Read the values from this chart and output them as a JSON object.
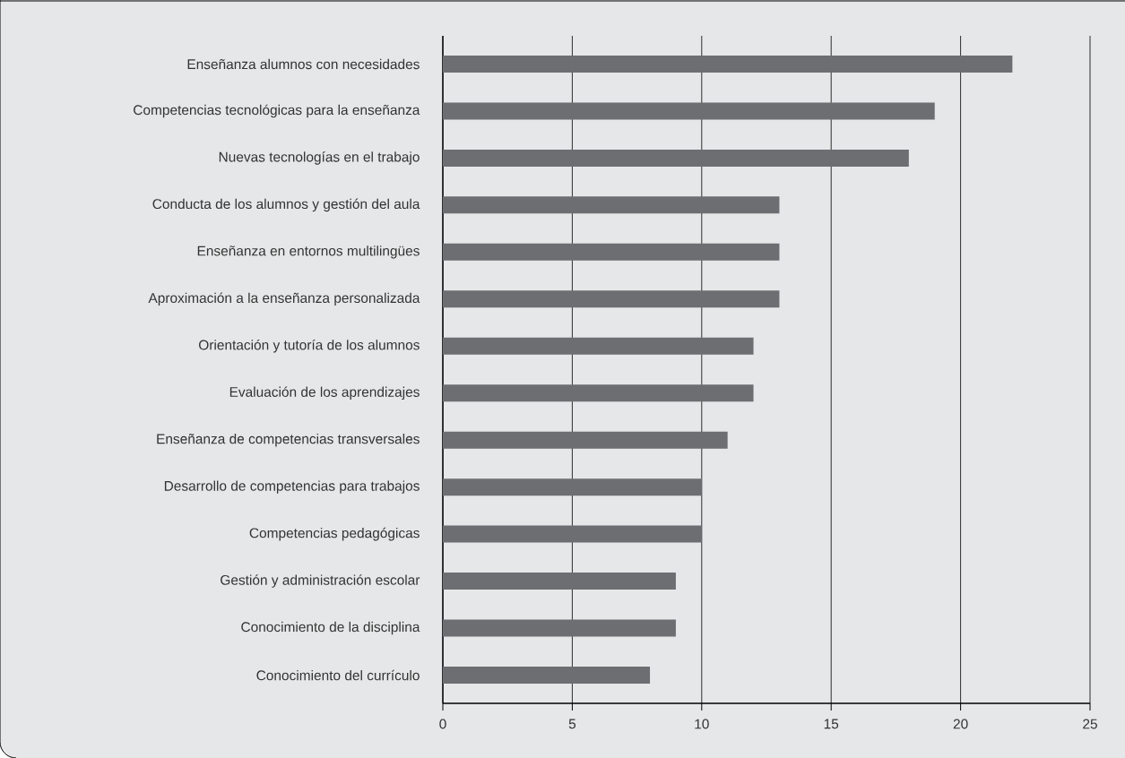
{
  "chart_data": {
    "type": "bar",
    "orientation": "horizontal",
    "categories": [
      "Enseñanza alumnos con necesidades",
      "Competencias tecnológicas para la enseñanza",
      "Nuevas tecnologías en el trabajo",
      "Conducta de los alumnos y gestión del aula",
      "Enseñanza en entornos multilingües",
      "Aproximación a la enseñanza personalizada",
      "Orientación y tutoría de los alumnos",
      "Evaluación de los aprendizajes",
      "Enseñanza de competencias transversales",
      "Desarrollo de competencias para trabajos",
      "Competencias pedagógicas",
      "Gestión y administración escolar",
      "Conocimiento de la disciplina",
      "Conocimiento del currículo"
    ],
    "values": [
      22,
      19,
      18,
      13,
      13,
      13,
      12,
      12,
      11,
      10,
      10,
      9,
      9,
      8
    ],
    "color": "#6d6e71",
    "xlim": [
      0,
      25
    ],
    "xticks": [
      0,
      5,
      10,
      15,
      20,
      25
    ],
    "grid": "x"
  }
}
